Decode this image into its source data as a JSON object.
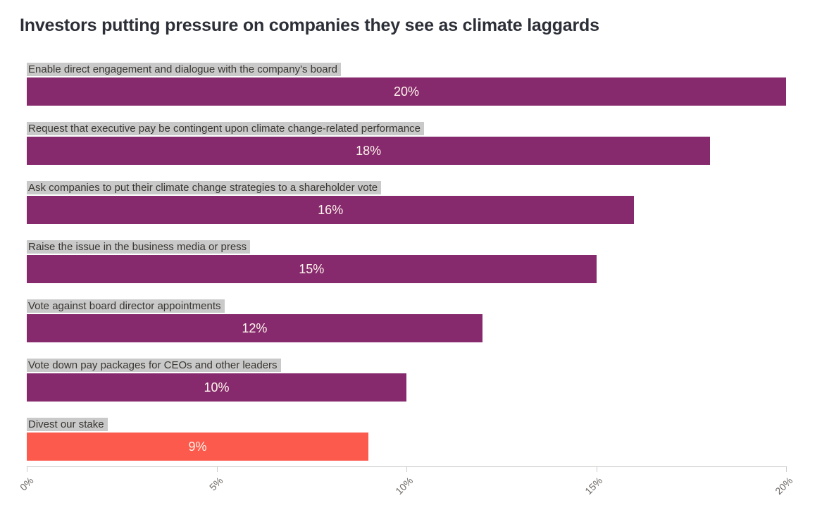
{
  "title": "Investors putting pressure on companies they see as climate laggards",
  "chart_data": {
    "type": "bar",
    "orientation": "horizontal",
    "title": "Investors putting pressure on companies they see as climate laggards",
    "categories": [
      "Enable direct engagement and dialogue with the company's board",
      "Request that executive pay be contingent upon climate change-related performance",
      "Ask companies to put their climate change strategies to a shareholder vote",
      "Raise the issue in the business media or press",
      "Vote against board director appointments",
      "Vote down pay packages for CEOs and other leaders",
      "Divest our stake"
    ],
    "values": [
      20,
      18,
      16,
      15,
      12,
      10,
      9
    ],
    "value_labels": [
      "20%",
      "18%",
      "16%",
      "15%",
      "12%",
      "10%",
      "9%"
    ],
    "bar_colors": [
      "#862a6d",
      "#862a6d",
      "#862a6d",
      "#862a6d",
      "#862a6d",
      "#862a6d",
      "#fb5a4c"
    ],
    "default_bar_color": "#862a6d",
    "highlight_bar_color": "#fb5a4c",
    "category_label_background": "#c9c9c9",
    "xlabel": "",
    "ylabel": "",
    "xlim": [
      0,
      20
    ],
    "x_ticks": [
      "0%",
      "5%",
      "10%",
      "15%",
      "20%"
    ],
    "x_tick_values": [
      0,
      5,
      10,
      15,
      20
    ],
    "grid": false,
    "legend": false
  }
}
